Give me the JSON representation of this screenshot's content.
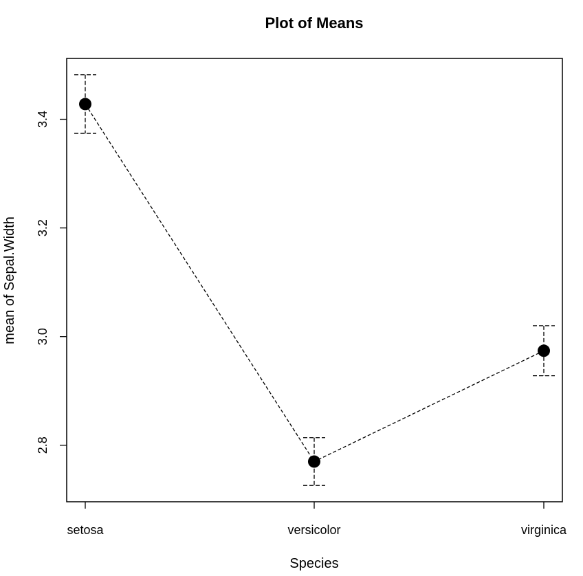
{
  "chart_data": {
    "type": "line",
    "title": "Plot of Means",
    "xlabel": "Species",
    "ylabel": "mean of Sepal.Width",
    "categories": [
      "setosa",
      "versicolor",
      "virginica"
    ],
    "series": [
      {
        "values": [
          3.428,
          2.77,
          2.974
        ],
        "lower": [
          3.374,
          2.726,
          2.928
        ],
        "upper": [
          3.482,
          2.814,
          3.02
        ]
      }
    ],
    "ylim": [
      2.696,
      3.512
    ],
    "yticks": [
      2.8,
      3.0,
      3.2,
      3.4
    ],
    "ytick_labels": [
      "2.8",
      "3.0",
      "3.2",
      "3.4"
    ],
    "grid": false
  }
}
